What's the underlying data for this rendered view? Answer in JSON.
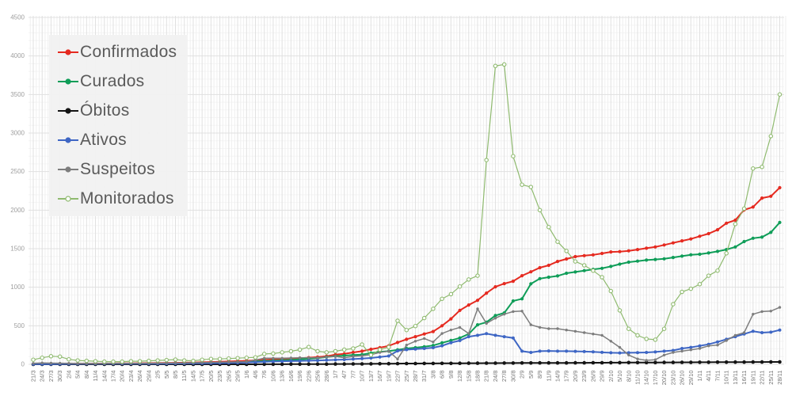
{
  "chart_data": {
    "type": "line",
    "title": "",
    "xlabel": "",
    "ylabel": "",
    "legend_position": "top-left",
    "grid": true,
    "y_axis": {
      "min": 0,
      "max": 4500,
      "step": 500,
      "tick_labels": [
        "0",
        "500",
        "1000",
        "1500",
        "2000",
        "2500",
        "3000",
        "3500",
        "4000",
        "4500"
      ]
    },
    "x_labels": [
      "21/3",
      "24/3",
      "27/3",
      "30/3",
      "2/4",
      "5/4",
      "8/4",
      "11/4",
      "14/4",
      "17/4",
      "20/4",
      "23/4",
      "26/4",
      "29/4",
      "2/5",
      "5/5",
      "8/5",
      "11/5",
      "14/5",
      "17/5",
      "20/5",
      "23/5",
      "26/5",
      "29/5",
      "1/6",
      "4/6",
      "7/6",
      "10/6",
      "13/6",
      "16/6",
      "19/6",
      "22/6",
      "25/6",
      "28/6",
      "1/7",
      "4/7",
      "7/7",
      "10/7",
      "13/7",
      "16/7",
      "19/7",
      "22/7",
      "25/7",
      "28/7",
      "31/7",
      "3/8",
      "6/8",
      "9/8",
      "12/8",
      "15/8",
      "18/8",
      "21/8",
      "24/8",
      "27/8",
      "30/8",
      "2/9",
      "5/9",
      "8/9",
      "11/9",
      "14/9",
      "17/9",
      "20/9",
      "23/9",
      "26/9",
      "29/9",
      "2/10",
      "5/10",
      "8/10",
      "11/10",
      "14/10",
      "17/10",
      "20/10",
      "23/10",
      "26/10",
      "29/10",
      "1/11",
      "4/11",
      "7/11",
      "10/11",
      "13/11",
      "16/11",
      "19/11",
      "22/11",
      "25/11",
      "28/11"
    ],
    "series": [
      {
        "name": "Confirmados",
        "color": "#e52a20",
        "marker": "filled-dot",
        "values": [
          2,
          3,
          4,
          5,
          6,
          7,
          8,
          9,
          10,
          11,
          12,
          13,
          14,
          15,
          16,
          18,
          20,
          22,
          24,
          27,
          30,
          33,
          37,
          41,
          45,
          51,
          58,
          63,
          68,
          74,
          80,
          86,
          93,
          105,
          125,
          137,
          154,
          171,
          195,
          216,
          239,
          284,
          325,
          359,
          393,
          425,
          500,
          590,
          700,
          770,
          830,
          924,
          1006,
          1047,
          1078,
          1150,
          1200,
          1253,
          1284,
          1335,
          1366,
          1397,
          1410,
          1420,
          1438,
          1458,
          1462,
          1472,
          1489,
          1506,
          1523,
          1548,
          1575,
          1602,
          1626,
          1661,
          1695,
          1746,
          1831,
          1870,
          2003,
          2040,
          2157,
          2180,
          2291
        ]
      },
      {
        "name": "Curados",
        "color": "#0f9d58",
        "marker": "filled-dot",
        "values": [
          0,
          0,
          1,
          1,
          1,
          2,
          2,
          3,
          3,
          4,
          4,
          5,
          6,
          7,
          8,
          9,
          10,
          12,
          14,
          16,
          18,
          21,
          24,
          28,
          32,
          38,
          44,
          48,
          54,
          58,
          64,
          72,
          80,
          95,
          105,
          113,
          120,
          126,
          147,
          161,
          171,
          188,
          205,
          216,
          228,
          245,
          278,
          310,
          342,
          393,
          513,
          547,
          633,
          667,
          822,
          850,
          1044,
          1112,
          1130,
          1147,
          1181,
          1198,
          1215,
          1232,
          1245,
          1270,
          1300,
          1325,
          1339,
          1352,
          1360,
          1369,
          1386,
          1403,
          1421,
          1428,
          1445,
          1465,
          1489,
          1523,
          1592,
          1636,
          1650,
          1712,
          1840
        ]
      },
      {
        "name": "Óbitos",
        "color": "#141414",
        "marker": "filled-dot",
        "values": [
          0,
          0,
          0,
          0,
          0,
          0,
          0,
          0,
          0,
          0,
          0,
          0,
          0,
          0,
          0,
          0,
          0,
          0,
          0,
          0,
          0,
          0,
          0,
          0,
          0,
          0,
          1,
          1,
          1,
          2,
          2,
          2,
          3,
          3,
          4,
          4,
          5,
          5,
          6,
          7,
          8,
          9,
          10,
          10,
          11,
          11,
          12,
          12,
          13,
          14,
          14,
          15,
          15,
          16,
          16,
          17,
          17,
          18,
          18,
          19,
          19,
          20,
          20,
          21,
          21,
          22,
          22,
          23,
          23,
          24,
          24,
          25,
          25,
          26,
          26,
          27,
          27,
          28,
          28,
          29,
          29,
          30,
          30,
          31,
          31
        ]
      },
      {
        "name": "Ativos",
        "color": "#3e66c4",
        "marker": "filled-dot",
        "values": [
          2,
          3,
          3,
          4,
          5,
          5,
          6,
          6,
          7,
          7,
          8,
          8,
          8,
          8,
          8,
          9,
          10,
          11,
          12,
          13,
          14,
          16,
          18,
          20,
          24,
          29,
          34,
          37,
          40,
          42,
          44,
          47,
          50,
          54,
          58,
          62,
          68,
          75,
          82,
          95,
          108,
          175,
          190,
          197,
          205,
          216,
          240,
          280,
          308,
          359,
          376,
          398,
          376,
          359,
          342,
          171,
          154,
          171,
          174,
          171,
          171,
          168,
          165,
          162,
          155,
          150,
          148,
          150,
          152,
          154,
          160,
          171,
          180,
          205,
          220,
          239,
          260,
          291,
          325,
          359,
          393,
          428,
          411,
          417,
          445
        ]
      },
      {
        "name": "Suspeitos",
        "color": "#7d7d7d",
        "marker": "filled-dot",
        "values": [
          12,
          18,
          15,
          14,
          12,
          10,
          10,
          9,
          10,
          11,
          12,
          12,
          13,
          14,
          15,
          16,
          18,
          20,
          22,
          24,
          26,
          28,
          30,
          32,
          35,
          55,
          79,
          79,
          79,
          82,
          85,
          85,
          85,
          95,
          103,
          85,
          103,
          110,
          126,
          154,
          171,
          68,
          250,
          300,
          335,
          290,
          400,
          445,
          479,
          400,
          719,
          530,
          599,
          650,
          684,
          690,
          513,
          479,
          462,
          462,
          445,
          428,
          411,
          393,
          376,
          300,
          220,
          120,
          70,
          51,
          60,
          120,
          154,
          171,
          188,
          205,
          239,
          250,
          308,
          376,
          411,
          650,
          684,
          690,
          739
        ]
      },
      {
        "name": "Monitorados",
        "color": "#8fba6f",
        "marker": "open-dot",
        "values": [
          60,
          85,
          105,
          100,
          65,
          50,
          45,
          40,
          35,
          35,
          35,
          40,
          40,
          45,
          50,
          55,
          62,
          50,
          45,
          60,
          70,
          70,
          75,
          80,
          85,
          90,
          135,
          140,
          155,
          170,
          190,
          225,
          170,
          155,
          170,
          190,
          205,
          257,
          120,
          190,
          223,
          565,
          445,
          496,
          600,
          720,
          850,
          910,
          1010,
          1100,
          1150,
          2650,
          3870,
          3890,
          2700,
          2330,
          2300,
          2000,
          1780,
          1590,
          1470,
          1335,
          1284,
          1215,
          1130,
          950,
          700,
          460,
          376,
          330,
          320,
          460,
          780,
          940,
          980,
          1040,
          1150,
          1215,
          1440,
          1820,
          2020,
          2540,
          2560,
          2960,
          3500
        ]
      }
    ],
    "style": {
      "background": "#ffffff",
      "grid_major": "#e0e0e0",
      "grid_minor_v": "#efefef",
      "grid_minor_h": "#f5f5f5",
      "axis_label_color": "#9e9e9e",
      "x_label_color": "#757575",
      "legend_bg": "#f1f1f1",
      "legend_text": "#5a5a5a"
    }
  }
}
